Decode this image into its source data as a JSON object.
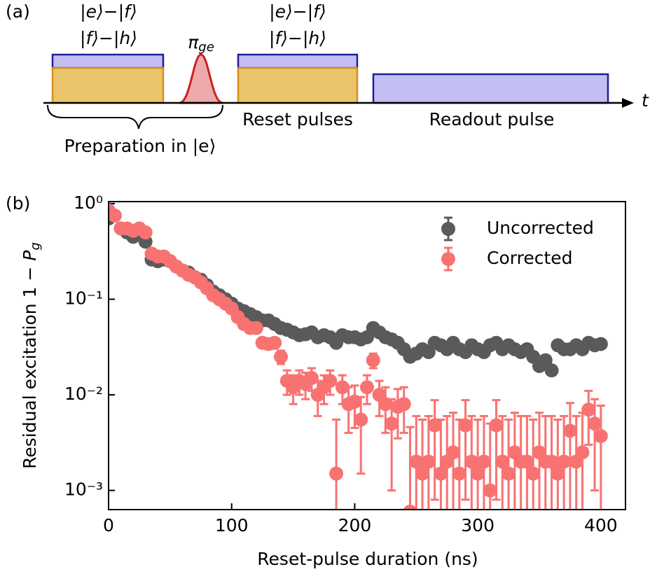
{
  "diagram": {
    "panel_label": "(a)",
    "pulse_labels": [
      "|e⟩−|f⟩",
      "|f⟩−|h⟩"
    ],
    "pulse_labels_2": [
      "|e⟩−|f⟩",
      "|f⟩−|h⟩"
    ],
    "pi_symbol": "π",
    "pi_subscript": "ge",
    "time_axis": "t",
    "preparation": "Preparation in |e⟩",
    "reset": "Reset pulses",
    "readout": "Readout pulse"
  },
  "chart_data": {
    "type": "scatter",
    "panel_label": "(b)",
    "xlabel": "Reset-pulse duration (ns)",
    "ylabel": {
      "text": "Residual excitation 1 −",
      "symbol": "P",
      "subscript": "g"
    },
    "xlim": [
      0,
      420
    ],
    "ylim": [
      0.00063,
      1.05
    ],
    "log_y": true,
    "xticks": [
      0,
      100,
      200,
      300,
      400
    ],
    "yticks": [
      {
        "value": 1,
        "label": "10⁰"
      },
      {
        "value": 0.1,
        "label": "10⁻¹"
      },
      {
        "value": 0.01,
        "label": "10⁻²"
      },
      {
        "value": 0.001,
        "label": "10⁻³"
      }
    ],
    "legend": "upper right",
    "x": [
      0,
      5,
      10,
      15,
      20,
      25,
      30,
      35,
      40,
      45,
      50,
      55,
      60,
      65,
      70,
      75,
      80,
      85,
      90,
      95,
      100,
      105,
      110,
      115,
      120,
      125,
      130,
      135,
      140,
      145,
      150,
      155,
      160,
      165,
      170,
      175,
      180,
      185,
      190,
      195,
      200,
      205,
      210,
      215,
      220,
      225,
      230,
      235,
      240,
      245,
      250,
      255,
      260,
      265,
      270,
      275,
      280,
      285,
      290,
      295,
      300,
      305,
      310,
      315,
      320,
      325,
      330,
      335,
      340,
      345,
      350,
      355,
      360,
      365,
      370,
      375,
      380,
      385,
      390,
      395,
      400
    ],
    "series": [
      {
        "name": "Uncorrected",
        "color": "#5a5a5a",
        "values": [
          0.7,
          0.75,
          0.55,
          0.5,
          0.45,
          0.48,
          0.4,
          0.26,
          0.25,
          0.26,
          0.25,
          0.22,
          0.2,
          0.19,
          0.17,
          0.16,
          0.14,
          0.12,
          0.11,
          0.1,
          0.09,
          0.08,
          0.075,
          0.07,
          0.065,
          0.06,
          0.06,
          0.055,
          0.05,
          0.048,
          0.045,
          0.042,
          0.043,
          0.045,
          0.04,
          0.042,
          0.04,
          0.035,
          0.042,
          0.04,
          0.04,
          0.038,
          0.04,
          0.05,
          0.045,
          0.04,
          0.038,
          0.035,
          0.03,
          0.025,
          0.027,
          0.03,
          0.028,
          0.035,
          0.033,
          0.03,
          0.035,
          0.03,
          0.028,
          0.033,
          0.03,
          0.028,
          0.033,
          0.035,
          0.03,
          0.033,
          0.03,
          0.028,
          0.03,
          0.025,
          0.02,
          0.023,
          0.018,
          0.033,
          0.03,
          0.03,
          0.033,
          0.03,
          0.035,
          0.033,
          0.034
        ]
      },
      {
        "name": "Corrected",
        "color": "#f87272",
        "values": [
          0.85,
          0.75,
          0.55,
          0.55,
          0.52,
          0.55,
          0.5,
          0.3,
          0.28,
          0.28,
          0.25,
          0.22,
          0.2,
          0.18,
          0.17,
          0.15,
          0.13,
          0.11,
          0.1,
          0.09,
          0.08,
          0.065,
          0.055,
          0.05,
          0.05,
          0.035,
          0.034,
          0.035,
          0.025,
          0.014,
          0.012,
          0.014,
          0.013,
          0.015,
          0.01,
          0.012,
          0.014,
          0.0015,
          0.012,
          0.008,
          0.0085,
          0.0055,
          0.012,
          0.023,
          0.01,
          0.008,
          0.005,
          0.0075,
          0.008,
          0.0006,
          0.002,
          0.0015,
          0.002,
          0.0048,
          0.0015,
          0.002,
          0.0025,
          0.0015,
          0.0048,
          0.002,
          0.0015,
          0.002,
          0.001,
          0.0048,
          0.002,
          0.0015,
          0.0025,
          0.002,
          0.002,
          0.0015,
          0.0025,
          0.002,
          0.002,
          0.0015,
          0.002,
          0.0042,
          0.002,
          0.0025,
          0.007,
          0.005,
          0.0037
        ],
        "errors": [
          0.05,
          0.05,
          0.04,
          0.04,
          0.04,
          0.04,
          0.04,
          0.02,
          0.02,
          0.02,
          0.02,
          0.015,
          0.015,
          0.012,
          0.012,
          0.01,
          0.01,
          0.008,
          0.008,
          0.007,
          0.006,
          0.005,
          0.005,
          0.004,
          0.004,
          0.004,
          0.004,
          0.004,
          0.004,
          0.004,
          0.004,
          0.004,
          0.004,
          0.004,
          0.004,
          0.004,
          0.004,
          0.004,
          0.004,
          0.004,
          0.004,
          0.004,
          0.004,
          0.004,
          0.004,
          0.004,
          0.004,
          0.004,
          0.004,
          0.004,
          0.004,
          0.004,
          0.004,
          0.004,
          0.004,
          0.004,
          0.004,
          0.004,
          0.004,
          0.004,
          0.004,
          0.004,
          0.004,
          0.004,
          0.004,
          0.004,
          0.004,
          0.004,
          0.004,
          0.004,
          0.004,
          0.004,
          0.004,
          0.004,
          0.004,
          0.004,
          0.004,
          0.004,
          0.004,
          0.004,
          0.004
        ]
      }
    ]
  }
}
